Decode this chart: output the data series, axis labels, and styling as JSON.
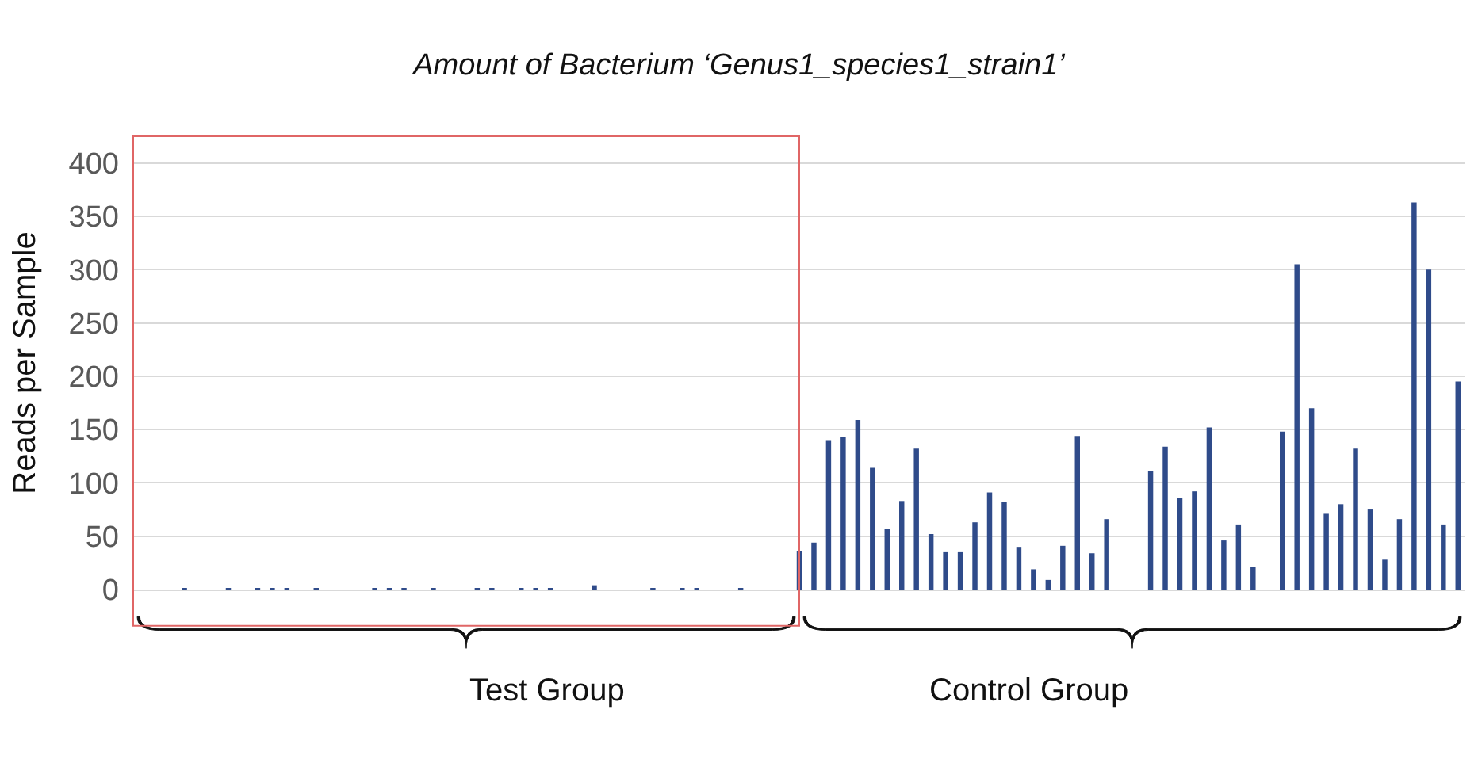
{
  "chart_data": {
    "type": "bar",
    "title": "Amount of Bacterium ‘Genus1_species1_strain1’",
    "ylabel": "Reads per Sample",
    "categories": [
      null,
      null,
      null,
      null,
      null,
      null,
      null,
      null,
      null,
      null,
      null,
      null,
      null,
      null,
      null,
      null,
      null,
      null,
      null,
      null,
      null,
      null,
      null,
      null,
      null,
      null,
      null,
      null,
      null,
      null,
      null,
      null,
      null,
      null,
      null,
      null,
      null,
      null,
      null,
      null,
      null,
      null,
      null,
      null,
      null,
      null,
      null,
      null,
      null,
      null,
      null,
      null,
      null,
      null,
      null,
      null,
      null,
      null,
      null,
      null,
      null,
      null,
      null,
      null,
      null,
      null,
      null,
      null,
      null,
      null,
      null,
      null,
      null,
      null,
      null,
      null,
      null,
      null,
      null,
      null,
      null,
      null,
      null,
      null,
      null,
      null,
      null,
      null,
      null,
      null,
      null
    ],
    "values": [
      0,
      0,
      0,
      1,
      0,
      0,
      1,
      0,
      1,
      1,
      1,
      0,
      1,
      0,
      0,
      0,
      1,
      1,
      1,
      0,
      1,
      0,
      0,
      1,
      1,
      0,
      1,
      1,
      1,
      0,
      0,
      4,
      0,
      0,
      0,
      1,
      0,
      1,
      1,
      0,
      0,
      1,
      0,
      0,
      0,
      36,
      44,
      140,
      143,
      159,
      114,
      57,
      83,
      132,
      52,
      35,
      35,
      63,
      91,
      82,
      40,
      19,
      9,
      41,
      144,
      34,
      66,
      0,
      0,
      111,
      134,
      86,
      92,
      152,
      46,
      61,
      21,
      0,
      148,
      305,
      170,
      71,
      80,
      132,
      75,
      28,
      66,
      363,
      300,
      61,
      195
    ],
    "color": "#2f4b8a",
    "ylim": [
      0,
      425
    ],
    "yticks": [
      0,
      50,
      100,
      150,
      200,
      250,
      300,
      350,
      400
    ],
    "grid": "y",
    "annotations": [
      "Test Group",
      "Control Group"
    ]
  }
}
